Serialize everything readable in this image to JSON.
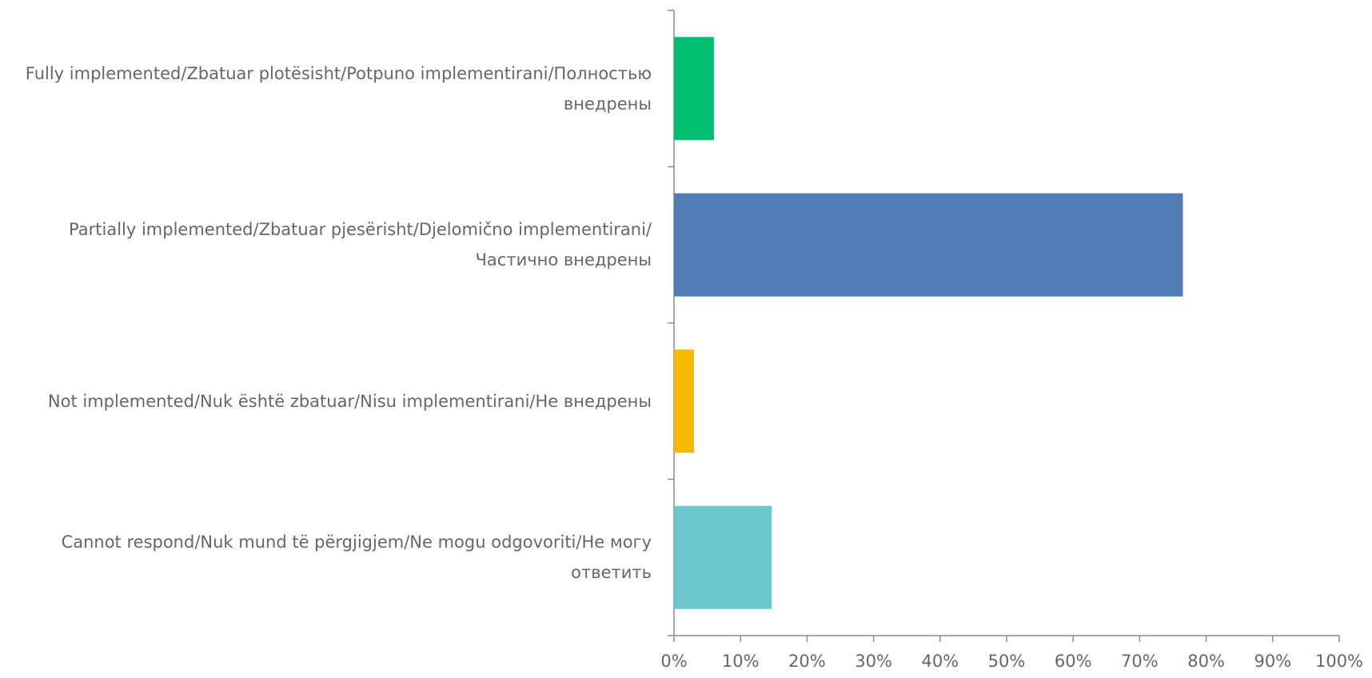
{
  "chart_data": {
    "type": "bar",
    "orientation": "horizontal",
    "categories": [
      "Fully implemented/Zbatuar plotësisht/Potpuno implementirani/Полностью внедрены",
      "Partially implemented/Zbatuar pjesërisht/Djelomično implementirani/Частично внедрены",
      "Not implemented/Nuk është zbatuar/Nisu implementirani/Не внедрены",
      "Cannot respond/Nuk mund të përgjigjem/Ne mogu odgovoriti/Не могу ответить"
    ],
    "values": [
      6,
      76.5,
      3,
      14.7
    ],
    "colors": [
      "#00bf6f",
      "#4f7cb5",
      "#f5b800",
      "#6bc8cc"
    ],
    "xlim": [
      0,
      100
    ],
    "xticks": [
      {
        "value": 0,
        "label": "0%"
      },
      {
        "value": 10,
        "label": "10%"
      },
      {
        "value": 20,
        "label": "20%"
      },
      {
        "value": 30,
        "label": "30%"
      },
      {
        "value": 40,
        "label": "40%"
      },
      {
        "value": 50,
        "label": "50%"
      },
      {
        "value": 60,
        "label": "60%"
      },
      {
        "value": 70,
        "label": "70%"
      },
      {
        "value": 80,
        "label": "80%"
      },
      {
        "value": 90,
        "label": "90%"
      },
      {
        "value": 100,
        "label": "100%"
      }
    ],
    "grid": false
  }
}
